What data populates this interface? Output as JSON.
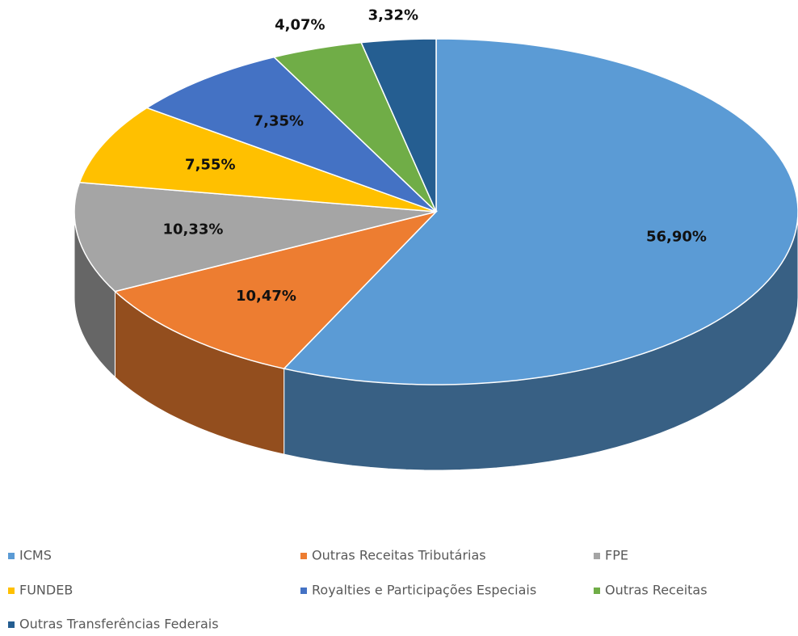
{
  "chart_data": {
    "type": "pie3d",
    "categories": [
      "ICMS",
      "Outras Receitas Tributárias",
      "FPE",
      "FUNDEB",
      "Royalties e Participações Especiais",
      "Outras Receitas",
      "Outras Transferências Federais"
    ],
    "values": [
      56.9,
      10.47,
      10.33,
      7.55,
      7.35,
      4.07,
      3.32
    ],
    "value_labels": [
      "56,90%",
      "10,47%",
      "10,33%",
      "7,55%",
      "7,35%",
      "4,07%",
      "3,32%"
    ],
    "colors": [
      "#5b9bd5",
      "#ed7d31",
      "#a5a5a5",
      "#ffc000",
      "#4472c4",
      "#70ad47",
      "#255e91"
    ],
    "legend": "bottom"
  }
}
